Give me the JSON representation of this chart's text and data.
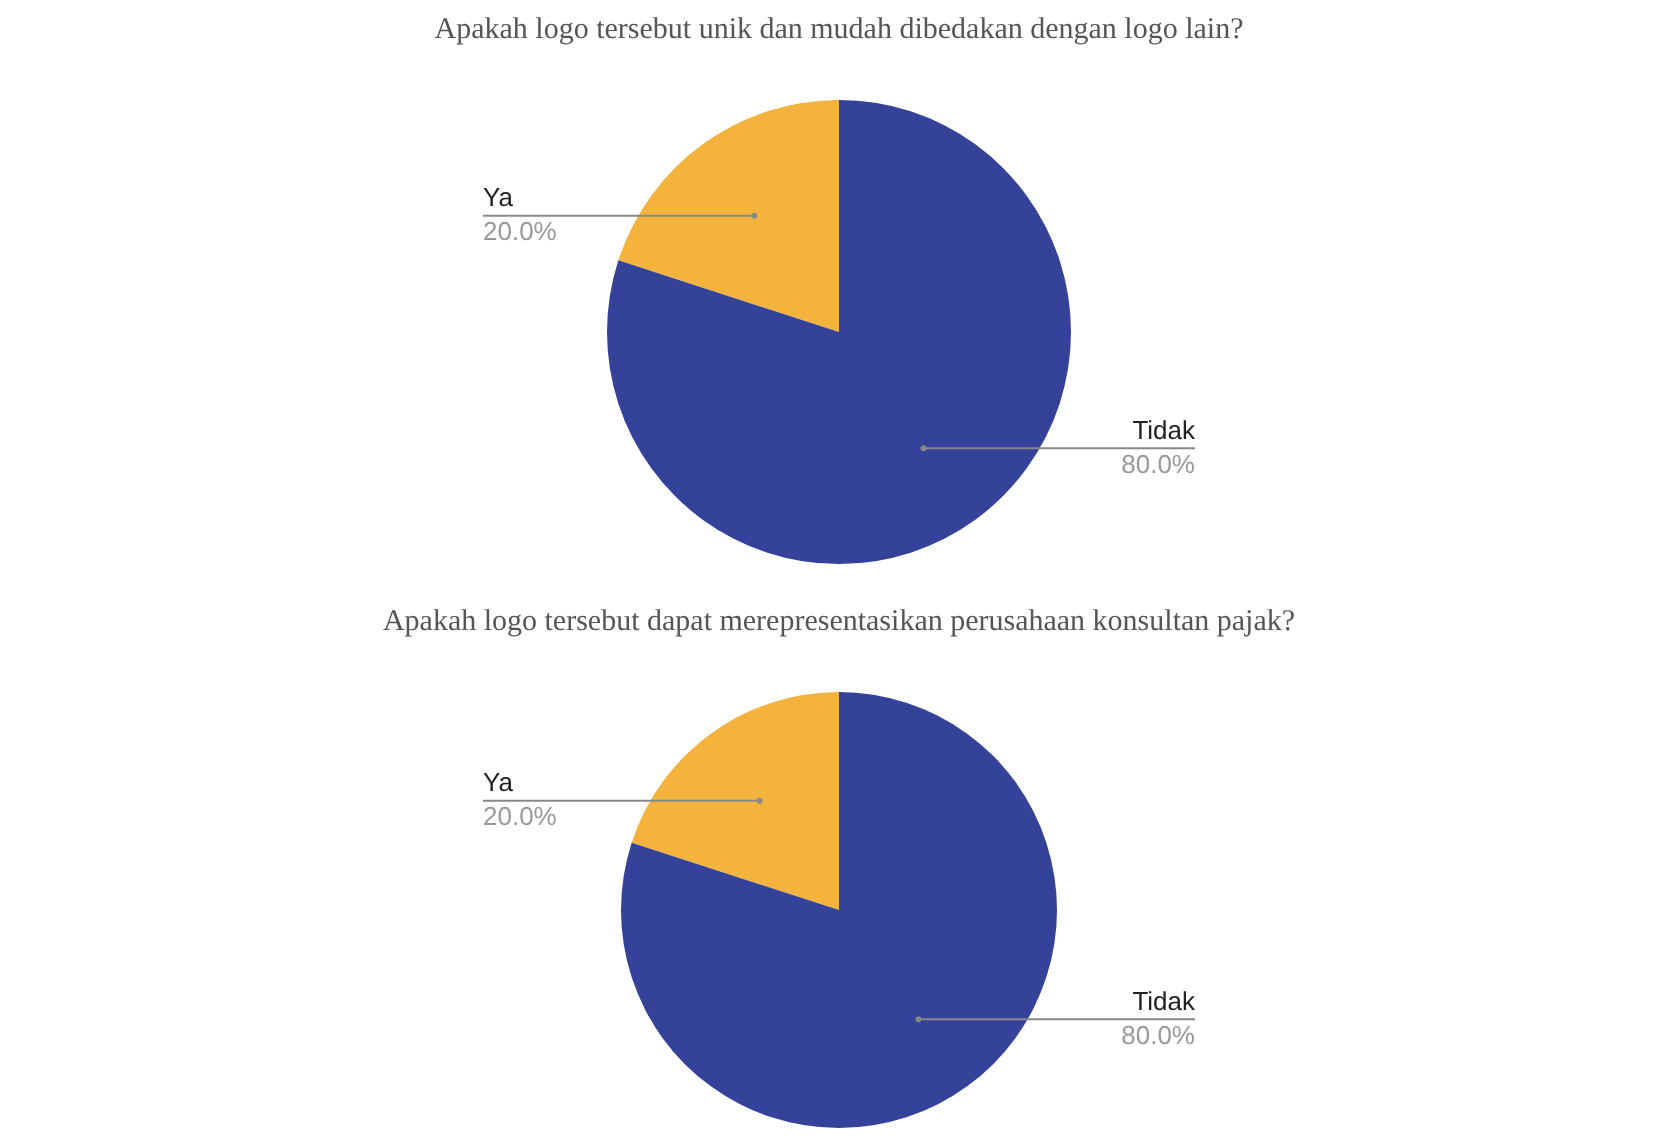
{
  "chart_data": [
    {
      "type": "pie",
      "title": "Apakah logo tersebut unik dan mudah dibedakan dengan logo lain?",
      "categories": [
        "Ya",
        "Tidak"
      ],
      "values": [
        20,
        80
      ],
      "colors": [
        "#f3b33d",
        "#35429a"
      ],
      "value_labels": [
        "20.0%",
        "80.0%"
      ],
      "legend": false
    },
    {
      "type": "pie",
      "title": "Apakah logo tersebut dapat merepresentasikan perusahaan konsultan pajak?",
      "categories": [
        "Ya",
        "Tidak"
      ],
      "values": [
        20,
        80
      ],
      "colors": [
        "#f3b33d",
        "#35429a"
      ],
      "value_labels": [
        "20.0%",
        "80.0%"
      ],
      "legend": false
    }
  ]
}
